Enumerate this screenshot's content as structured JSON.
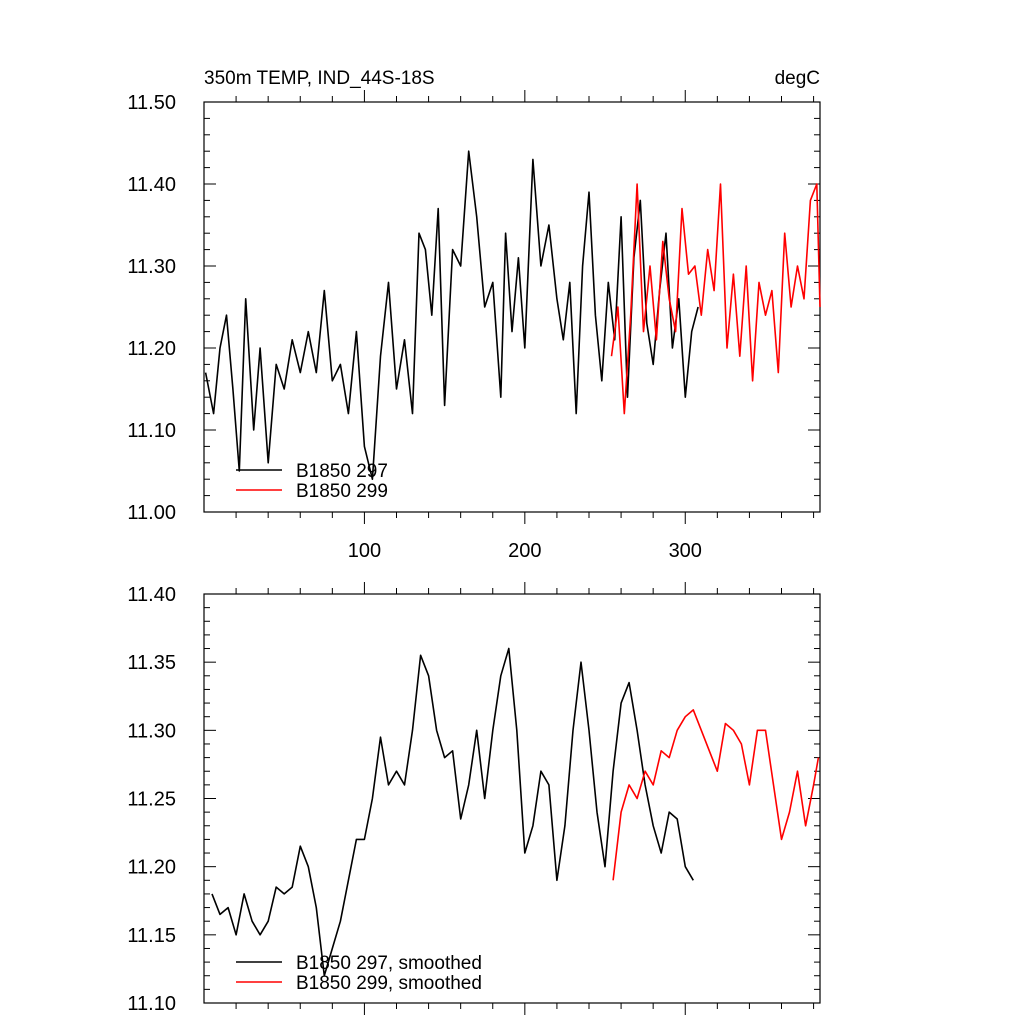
{
  "colors": {
    "series_a": "#000000",
    "series_b": "#ff0000",
    "frame": "#000000"
  },
  "top_panel": {
    "title_left": "350m TEMP, IND_44S-18S",
    "title_right": "degC"
  },
  "chart_data": [
    {
      "type": "line",
      "title": "350m TEMP, IND_44S-18S",
      "units": "degC",
      "xlim": [
        0,
        384
      ],
      "ylim": [
        11.0,
        11.5
      ],
      "xticks": [
        100,
        200,
        300
      ],
      "yticks": [
        11.0,
        11.1,
        11.2,
        11.3,
        11.4,
        11.5
      ],
      "ytick_labels": [
        "11.00",
        "11.10",
        "11.20",
        "11.30",
        "11.40",
        "11.50"
      ],
      "legend_position": "bottom-left",
      "series": [
        {
          "name": "B1850 297",
          "color": "#000000",
          "x": [
            1,
            6,
            10,
            14,
            18,
            22,
            26,
            31,
            35,
            40,
            45,
            50,
            55,
            60,
            65,
            70,
            75,
            80,
            85,
            90,
            95,
            100,
            105,
            110,
            115,
            120,
            125,
            130,
            134,
            138,
            142,
            146,
            150,
            155,
            160,
            165,
            170,
            175,
            180,
            185,
            188,
            192,
            196,
            200,
            205,
            210,
            215,
            220,
            224,
            228,
            232,
            236,
            240,
            244,
            248,
            252,
            256,
            260,
            264,
            268,
            272,
            276,
            280,
            284,
            288,
            292,
            296,
            300,
            304,
            308
          ],
          "y": [
            11.17,
            11.12,
            11.2,
            11.24,
            11.15,
            11.05,
            11.26,
            11.1,
            11.2,
            11.06,
            11.18,
            11.15,
            11.21,
            11.17,
            11.22,
            11.17,
            11.27,
            11.16,
            11.18,
            11.12,
            11.22,
            11.08,
            11.04,
            11.19,
            11.28,
            11.15,
            11.21,
            11.12,
            11.34,
            11.32,
            11.24,
            11.37,
            11.13,
            11.32,
            11.3,
            11.44,
            11.36,
            11.25,
            11.28,
            11.14,
            11.34,
            11.22,
            11.31,
            11.2,
            11.43,
            11.3,
            11.35,
            11.26,
            11.21,
            11.28,
            11.12,
            11.3,
            11.39,
            11.24,
            11.16,
            11.28,
            11.21,
            11.36,
            11.14,
            11.31,
            11.38,
            11.23,
            11.18,
            11.27,
            11.34,
            11.2,
            11.26,
            11.14,
            11.22,
            11.25
          ],
          "note": "approximate trace"
        },
        {
          "name": "B1850 299",
          "color": "#ff0000",
          "x": [
            254,
            258,
            262,
            266,
            270,
            274,
            278,
            282,
            286,
            290,
            294,
            298,
            302,
            306,
            310,
            314,
            318,
            322,
            326,
            330,
            334,
            338,
            342,
            346,
            350,
            354,
            358,
            362,
            366,
            370,
            374,
            378,
            382,
            384
          ],
          "y": [
            11.19,
            11.25,
            11.12,
            11.24,
            11.4,
            11.22,
            11.3,
            11.21,
            11.33,
            11.26,
            11.22,
            11.37,
            11.29,
            11.3,
            11.24,
            11.32,
            11.27,
            11.4,
            11.2,
            11.29,
            11.19,
            11.3,
            11.16,
            11.28,
            11.24,
            11.27,
            11.17,
            11.34,
            11.25,
            11.3,
            11.26,
            11.38,
            11.4,
            11.25
          ]
        }
      ]
    },
    {
      "type": "line",
      "xlim": [
        0,
        384
      ],
      "ylim": [
        11.1,
        11.4
      ],
      "yticks": [
        11.1,
        11.15,
        11.2,
        11.25,
        11.3,
        11.35,
        11.4
      ],
      "ytick_labels": [
        "11.10",
        "11.15",
        "11.20",
        "11.25",
        "11.30",
        "11.35",
        "11.40"
      ],
      "legend_position": "bottom-left",
      "series": [
        {
          "name": "B1850 297, smoothed",
          "color": "#000000",
          "x": [
            5,
            10,
            15,
            20,
            25,
            30,
            35,
            40,
            45,
            50,
            55,
            60,
            65,
            70,
            75,
            80,
            85,
            90,
            95,
            100,
            105,
            110,
            115,
            120,
            125,
            130,
            135,
            140,
            145,
            150,
            155,
            160,
            165,
            170,
            175,
            180,
            185,
            190,
            195,
            200,
            205,
            210,
            215,
            220,
            225,
            230,
            235,
            240,
            245,
            250,
            255,
            260,
            265,
            270,
            275,
            280,
            285,
            290,
            295,
            300,
            305
          ],
          "y": [
            11.18,
            11.165,
            11.17,
            11.15,
            11.18,
            11.16,
            11.15,
            11.16,
            11.185,
            11.18,
            11.185,
            11.215,
            11.2,
            11.17,
            11.12,
            11.14,
            11.16,
            11.19,
            11.22,
            11.22,
            11.25,
            11.295,
            11.26,
            11.27,
            11.26,
            11.3,
            11.355,
            11.34,
            11.3,
            11.28,
            11.285,
            11.235,
            11.26,
            11.3,
            11.25,
            11.3,
            11.34,
            11.36,
            11.3,
            11.21,
            11.23,
            11.27,
            11.26,
            11.19,
            11.23,
            11.3,
            11.35,
            11.3,
            11.24,
            11.2,
            11.27,
            11.32,
            11.335,
            11.3,
            11.26,
            11.23,
            11.21,
            11.24,
            11.235,
            11.2,
            11.19
          ]
        },
        {
          "name": "B1850 299, smoothed",
          "color": "#ff0000",
          "x": [
            255,
            260,
            265,
            270,
            275,
            280,
            285,
            290,
            295,
            300,
            305,
            310,
            315,
            320,
            325,
            330,
            335,
            340,
            345,
            350,
            355,
            360,
            365,
            370,
            375,
            380,
            383
          ],
          "y": [
            11.19,
            11.24,
            11.26,
            11.25,
            11.27,
            11.26,
            11.285,
            11.28,
            11.3,
            11.31,
            11.315,
            11.3,
            11.285,
            11.27,
            11.305,
            11.3,
            11.29,
            11.26,
            11.3,
            11.3,
            11.26,
            11.22,
            11.24,
            11.27,
            11.23,
            11.26,
            11.28
          ]
        }
      ]
    }
  ]
}
